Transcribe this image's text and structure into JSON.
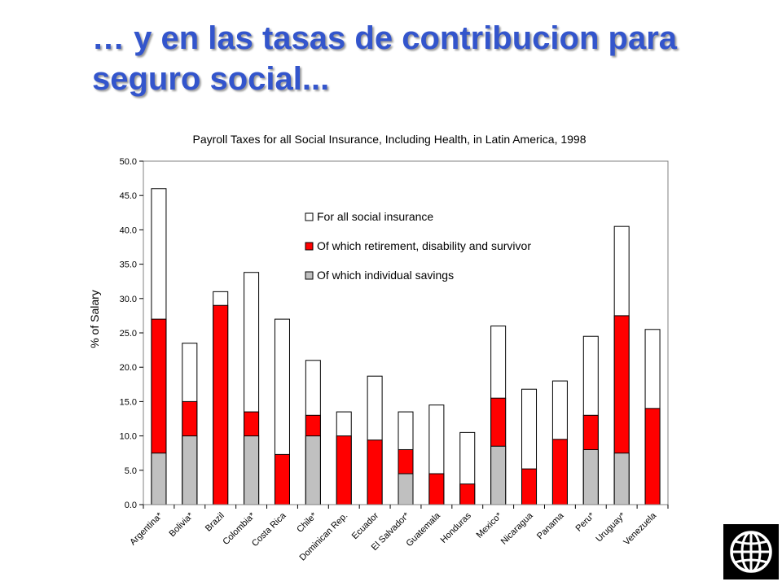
{
  "slide": {
    "title_line1": "… y en las tasas de contribucion para",
    "title_line2": "seguro social..."
  },
  "colors": {
    "title": "#3355cc",
    "total_fill": "#ffffff",
    "retirement_fill": "#ff0000",
    "savings_fill": "#c0c0c0"
  },
  "chart_data": {
    "type": "bar",
    "title": "Payroll Taxes for all Social Insurance, Including Health, in Latin America, 1998",
    "xlabel": "",
    "ylabel": "% of Salary",
    "ylim": [
      0,
      50
    ],
    "yticks": [
      "0.0",
      "5.0",
      "10.0",
      "15.0",
      "20.0",
      "25.0",
      "30.0",
      "35.0",
      "40.0",
      "45.0",
      "50.0"
    ],
    "grid": false,
    "legend_position": "top-center",
    "categories": [
      "Argentina*",
      "Bolivia*",
      "Brazil",
      "Colombia*",
      "Costa Rica",
      "Chile*",
      "Dominican Rep.",
      "Ecuador",
      "El Salvador*",
      "Guatemala",
      "Honduras",
      "Mexico*",
      "Nicaragua",
      "Panama",
      "Peru*",
      "Uruguay*",
      "Venezuela"
    ],
    "series": [
      {
        "name": "For all social insurance",
        "values": [
          46.0,
          23.5,
          31.0,
          33.8,
          27.0,
          21.0,
          13.5,
          18.7,
          13.5,
          14.5,
          10.5,
          26.0,
          16.8,
          18.0,
          24.5,
          40.5,
          25.5
        ]
      },
      {
        "name": "Of which retirement, disability and survivor",
        "values": [
          27.0,
          15.0,
          29.0,
          13.5,
          7.3,
          13.0,
          10.0,
          9.4,
          8.0,
          4.5,
          3.0,
          15.5,
          5.2,
          9.5,
          13.0,
          27.5,
          14.0
        ]
      },
      {
        "name": "Of which individual savings",
        "values": [
          7.5,
          10.0,
          0,
          10.0,
          0,
          10.0,
          0,
          0,
          4.5,
          0,
          0,
          8.5,
          0,
          0,
          8.0,
          7.5,
          0
        ]
      }
    ]
  }
}
